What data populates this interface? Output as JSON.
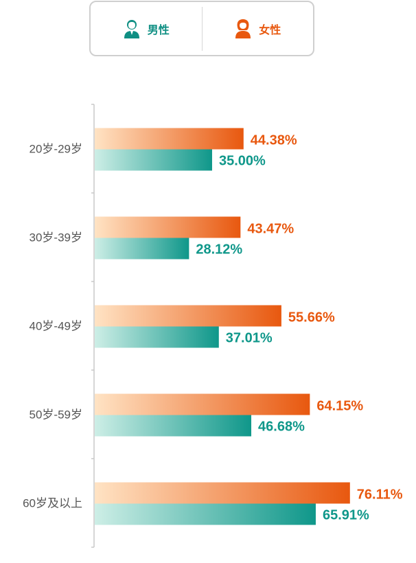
{
  "legend": {
    "male_label": "男性",
    "female_label": "女性",
    "male_icon": "male-user-icon",
    "female_icon": "female-user-icon"
  },
  "colors": {
    "male_dark": "#0f978a",
    "male_light": "#cdeee6",
    "female_dark": "#e8580f",
    "female_light": "#ffe3c4",
    "axis": "#c8c8c8",
    "category_text": "#555555"
  },
  "chart_data": {
    "type": "bar",
    "orientation": "horizontal",
    "categories": [
      "20岁-29岁",
      "30岁-39岁",
      "40岁-49岁",
      "50岁-59岁",
      "60岁及以上"
    ],
    "series": [
      {
        "name": "女性",
        "values": [
          44.38,
          43.47,
          55.66,
          64.15,
          76.11
        ],
        "labels": [
          "44.38%",
          "43.47%",
          "55.66%",
          "64.15%",
          "76.11%"
        ]
      },
      {
        "name": "男性",
        "values": [
          35.0,
          28.12,
          37.01,
          46.68,
          65.91
        ],
        "labels": [
          "35.00%",
          "28.12%",
          "37.01%",
          "46.68%",
          "65.91%"
        ]
      }
    ],
    "unit": "%",
    "legend_position": "top-center",
    "grid": false
  }
}
